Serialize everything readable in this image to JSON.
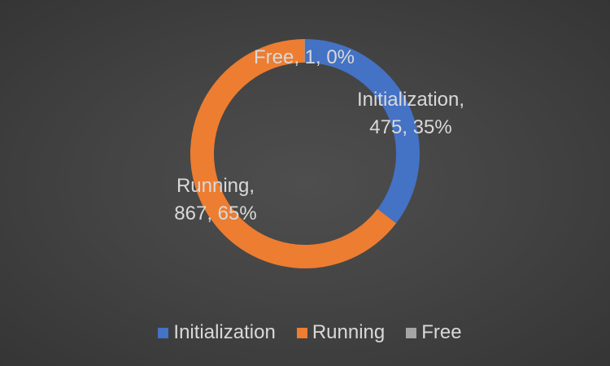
{
  "chart_data": {
    "type": "pie",
    "variant": "donut",
    "categories": [
      "Initialization",
      "Running",
      "Free"
    ],
    "values": [
      475,
      867,
      1
    ],
    "percent_labels": [
      "35%",
      "65%",
      "0%"
    ],
    "colors": [
      "#4472c4",
      "#ed7d31",
      "#a5a5a5"
    ],
    "title": "",
    "data_labels": [
      {
        "line1": "Initialization,",
        "line2": "475, 35%"
      },
      {
        "line1": "Running,",
        "line2": "867, 65%"
      },
      {
        "line1": "Free, 1, 0%"
      }
    ],
    "legend": {
      "position": "bottom",
      "entries": [
        "Initialization",
        "Running",
        "Free"
      ]
    },
    "background": "#444444",
    "label_color": "#d9d9d9"
  }
}
